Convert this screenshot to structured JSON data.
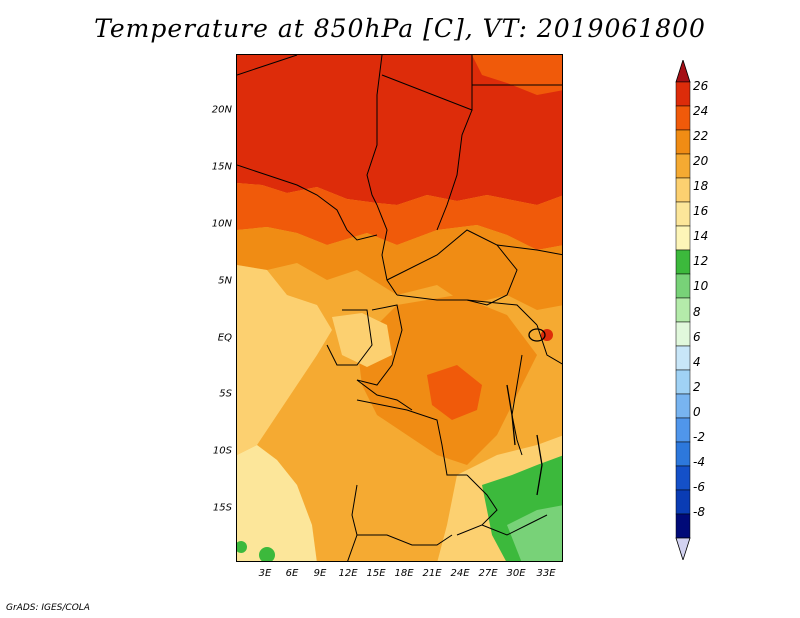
{
  "title": "Temperature at 850hPa [C], VT: 2019061800",
  "credit": "GrADS: IGES/COLA",
  "map": {
    "region": "Central Africa",
    "variable": "Temperature at 850hPa",
    "units": "C",
    "valid_time": "2019061800",
    "lat_labels": [
      "20N",
      "15N",
      "10N",
      "5N",
      "EQ",
      "5S",
      "10S",
      "15S"
    ],
    "lon_labels": [
      "3E",
      "6E",
      "9E",
      "12E",
      "15E",
      "18E",
      "21E",
      "24E",
      "27E",
      "30E",
      "33E"
    ]
  },
  "colorbar": {
    "labels": [
      "26",
      "24",
      "22",
      "20",
      "18",
      "16",
      "14",
      "12",
      "10",
      "8",
      "6",
      "4",
      "2",
      "0",
      "-2",
      "-4",
      "-6",
      "-8"
    ],
    "colors": [
      "#a50f15",
      "#dd2c0a",
      "#f05a0a",
      "#f08c14",
      "#f5aa32",
      "#fcd070",
      "#fce69a",
      "#fdf5b8",
      "#3cb93c",
      "#78d278",
      "#b4ebaa",
      "#e1f8dc",
      "#c8e6f8",
      "#a0d2f5",
      "#78b4f0",
      "#5096eb",
      "#2d78dc",
      "#1450c8",
      "#0a3cb4",
      "#000a78",
      "#d2d2f0"
    ],
    "color_names": [
      "top-arrow-red",
      "24-26",
      "22-24",
      "20-22",
      "18-20",
      "16-18",
      "14-16",
      "12-14",
      "10-12",
      "8-10",
      "6-8",
      "4-6",
      "2-4",
      "0-2",
      "-2-0",
      "-4--2",
      "-6--4",
      "-8--6",
      "below-8",
      "bottom-navy",
      "bottom-arrow-lavender"
    ]
  }
}
